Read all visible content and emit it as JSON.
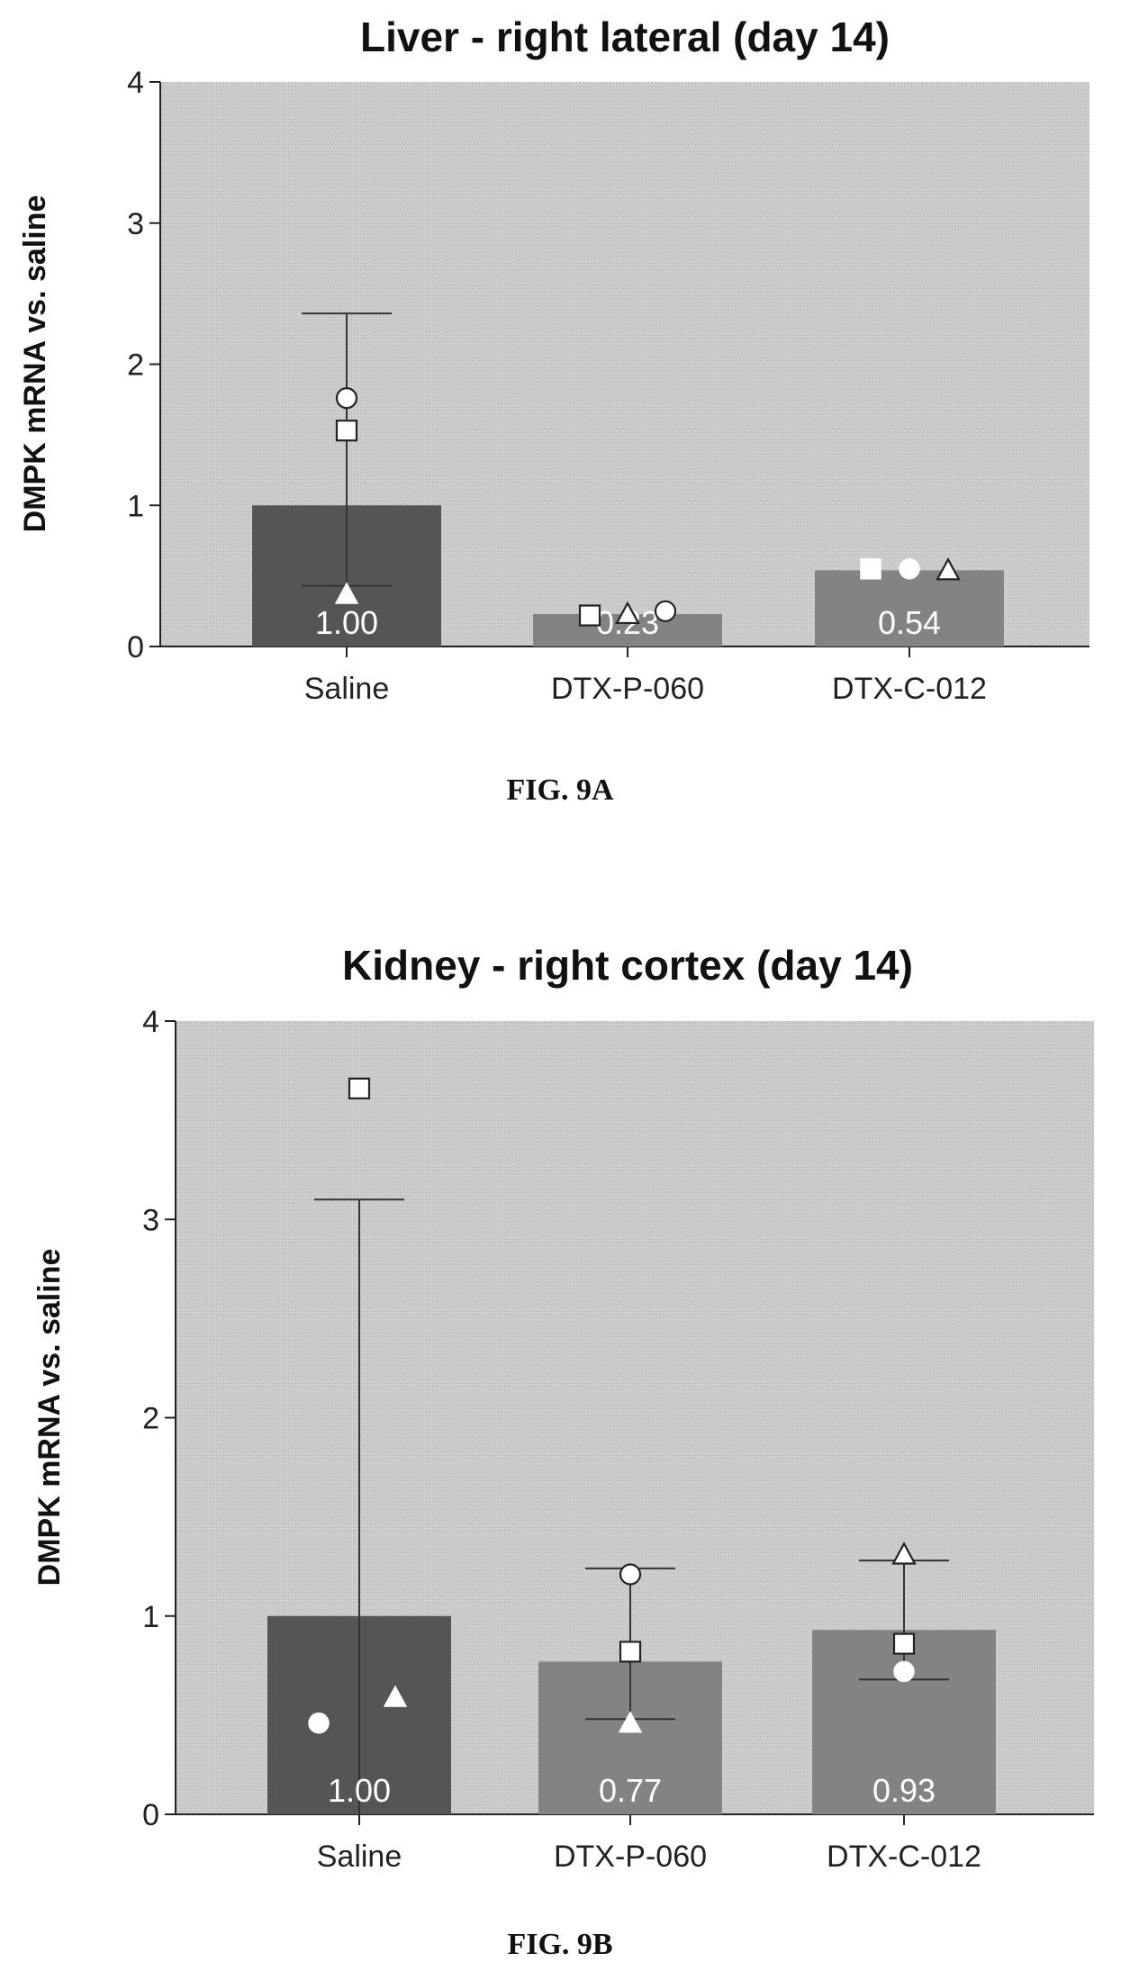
{
  "colors": {
    "plot_background": "#c9c9c9",
    "saline_bar": "#555555",
    "treatment_bar": "#838383",
    "axis": "#222222"
  },
  "chart_data": [
    {
      "type": "bar",
      "title": "Liver - right lateral (day 14)",
      "ylabel": "DMPK mRNA vs. saline",
      "xlabel": "",
      "ylim": [
        0,
        4
      ],
      "yticks": [
        "0",
        "1",
        "2",
        "3",
        "4"
      ],
      "categories": [
        "Saline",
        "DTX-P-060",
        "DTX-C-012"
      ],
      "values": [
        1.0,
        0.23,
        0.54
      ],
      "value_labels": [
        "1.00",
        "0.23",
        "0.54"
      ],
      "error_bars": [
        {
          "upper": 2.36,
          "lower": 0.43
        },
        {
          "upper": 0.23,
          "lower": 0.23
        },
        {
          "upper": 0.54,
          "lower": 0.54
        }
      ],
      "points": [
        [
          {
            "shape": "circle-open",
            "value": 1.76
          },
          {
            "shape": "square-open",
            "value": 1.53
          },
          {
            "shape": "triangle-filled",
            "value": 0.37
          }
        ],
        [
          {
            "shape": "square-open",
            "value": 0.22
          },
          {
            "shape": "triangle-open",
            "value": 0.23
          },
          {
            "shape": "circle-open",
            "value": 0.25
          }
        ],
        [
          {
            "shape": "square-filled",
            "value": 0.55
          },
          {
            "shape": "circle-filled",
            "value": 0.55
          },
          {
            "shape": "triangle-open",
            "value": 0.54
          }
        ]
      ],
      "caption": "FIG. 9A"
    },
    {
      "type": "bar",
      "title": "Kidney - right cortex (day 14)",
      "ylabel": "DMPK mRNA vs. saline",
      "xlabel": "",
      "ylim": [
        0,
        4
      ],
      "yticks": [
        "0",
        "1",
        "2",
        "3",
        "4"
      ],
      "categories": [
        "Saline",
        "DTX-P-060",
        "DTX-C-012"
      ],
      "values": [
        1.0,
        0.77,
        0.93
      ],
      "value_labels": [
        "1.00",
        "0.77",
        "0.93"
      ],
      "error_bars": [
        {
          "upper": 3.1,
          "lower": 0.0
        },
        {
          "upper": 1.24,
          "lower": 0.48
        },
        {
          "upper": 1.28,
          "lower": 0.68
        }
      ],
      "points": [
        [
          {
            "shape": "square-open",
            "value": 3.66
          },
          {
            "shape": "circle-filled",
            "value": 0.46
          },
          {
            "shape": "triangle-filled",
            "value": 0.59
          }
        ],
        [
          {
            "shape": "circle-open",
            "value": 1.21
          },
          {
            "shape": "square-open",
            "value": 0.82
          },
          {
            "shape": "triangle-filled",
            "value": 0.46
          }
        ],
        [
          {
            "shape": "triangle-open",
            "value": 1.31
          },
          {
            "shape": "square-open",
            "value": 0.86
          },
          {
            "shape": "circle-filled",
            "value": 0.72
          }
        ]
      ],
      "caption": "FIG. 9B"
    }
  ]
}
